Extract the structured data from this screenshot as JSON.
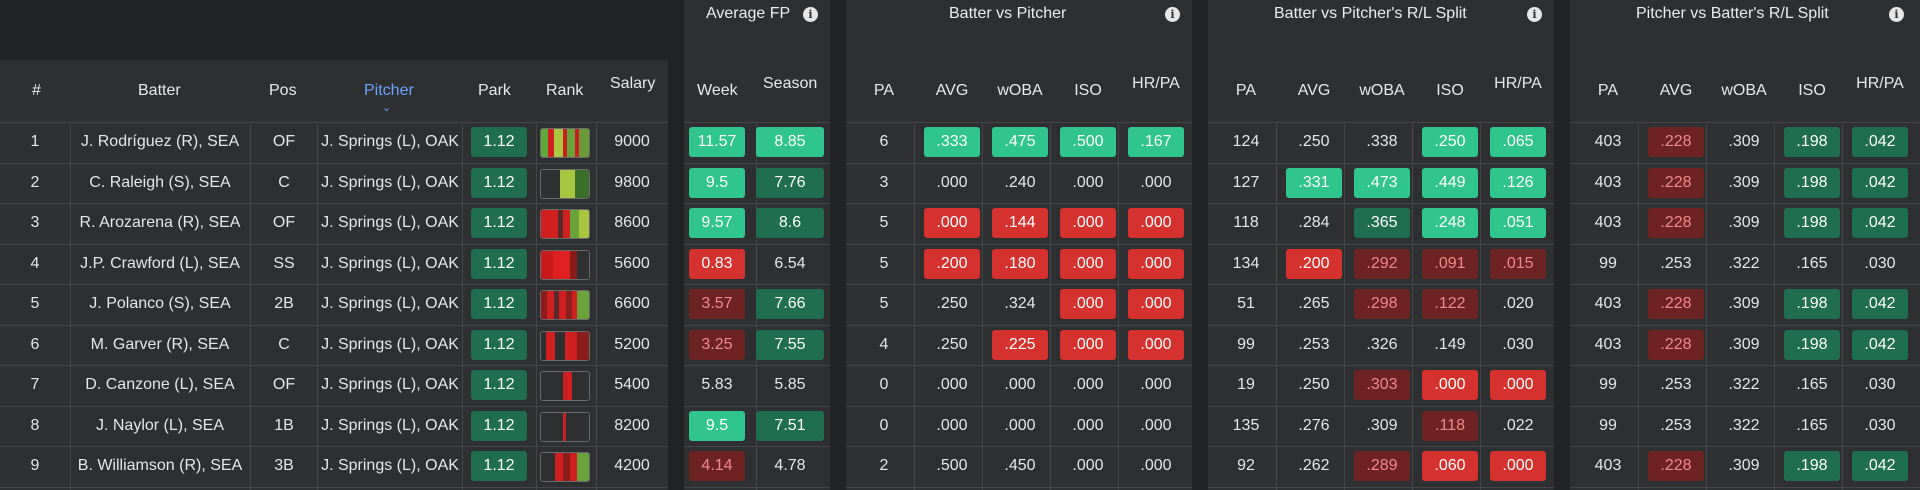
{
  "colors": {
    "bright_green": "#2fc58c",
    "dark_green": "#1f6e4f",
    "bright_red": "#d5312f",
    "dark_red": "#6e2323",
    "accent_blue": "#6aa4ff"
  },
  "groups": [
    {
      "title": "Average FP",
      "info_icon": "info-icon"
    },
    {
      "title": "Batter vs Pitcher",
      "info_icon": "info-icon"
    },
    {
      "title": "Batter vs Pitcher's R/L Split",
      "info_icon": "info-icon"
    },
    {
      "title": "Pitcher vs Batter's R/L Split",
      "info_icon": "info-icon"
    }
  ],
  "columns": {
    "num": "#",
    "batter": "Batter",
    "pos": "Pos",
    "pitcher": "Pitcher",
    "park": "Park",
    "rank": "Rank",
    "salary": "Salary",
    "week": "Week",
    "season": "Season",
    "stats": [
      "PA",
      "AVG",
      "wOBA",
      "ISO",
      "HR/PA"
    ]
  },
  "sort": {
    "column": "pitcher",
    "direction": "descending"
  },
  "rows": [
    {
      "num": "1",
      "batter": "J. Rodríguez (R), SEA",
      "pos": "OF",
      "pitcher": "J. Springs (L), OAK",
      "park": "1.12",
      "salary": "9000",
      "rank": [
        [
          "#5fa83a",
          0.15
        ],
        [
          "#d01f1f",
          0.12
        ],
        [
          "#a8c640",
          0.18
        ],
        [
          "#c82020",
          0.1
        ],
        [
          "#6aa33a",
          0.15
        ],
        [
          "#c82020",
          0.1
        ],
        [
          "#6a9a38",
          0.2
        ]
      ],
      "afp": [
        [
          "11.57",
          "bg"
        ],
        [
          "8.85",
          "bg"
        ]
      ],
      "bvp": [
        [
          "6",
          ""
        ],
        [
          ".333",
          "bg"
        ],
        [
          ".475",
          "bg"
        ],
        [
          ".500",
          "bg"
        ],
        [
          ".167",
          "bg"
        ]
      ],
      "bvs": [
        [
          "124",
          ""
        ],
        [
          ".250",
          ""
        ],
        [
          ".338",
          ""
        ],
        [
          ".250",
          "bg"
        ],
        [
          ".065",
          "bg"
        ]
      ],
      "pvs": [
        [
          "403",
          ""
        ],
        [
          ".228",
          "dr"
        ],
        [
          ".309",
          ""
        ],
        [
          ".198",
          "dg"
        ],
        [
          ".042",
          "dg"
        ]
      ]
    },
    {
      "num": "2",
      "batter": "C. Raleigh (S), SEA",
      "pos": "C",
      "pitcher": "J. Springs (L), OAK",
      "park": "1.12",
      "salary": "9800",
      "rank": [
        [
          "#2e2f31",
          0.4
        ],
        [
          "#a7c63f",
          0.3
        ],
        [
          "#3a6e2a",
          0.3
        ]
      ],
      "afp": [
        [
          "9.5",
          "bg"
        ],
        [
          "7.76",
          "dg"
        ]
      ],
      "bvp": [
        [
          "3",
          ""
        ],
        [
          ".000",
          ""
        ],
        [
          ".240",
          ""
        ],
        [
          ".000",
          ""
        ],
        [
          ".000",
          ""
        ]
      ],
      "bvs": [
        [
          "127",
          ""
        ],
        [
          ".331",
          "bg"
        ],
        [
          ".473",
          "bg"
        ],
        [
          ".449",
          "bg"
        ],
        [
          ".126",
          "bg"
        ]
      ],
      "pvs": [
        [
          "403",
          ""
        ],
        [
          ".228",
          "dr"
        ],
        [
          ".309",
          ""
        ],
        [
          ".198",
          "dg"
        ],
        [
          ".042",
          "dg"
        ]
      ]
    },
    {
      "num": "3",
      "batter": "R. Arozarena (R), SEA",
      "pos": "OF",
      "pitcher": "J. Springs (L), OAK",
      "park": "1.12",
      "salary": "8600",
      "rank": [
        [
          "#d01f1f",
          0.35
        ],
        [
          "#5a2a2a",
          0.1
        ],
        [
          "#d01f1f",
          0.15
        ],
        [
          "#6aa33a",
          0.2
        ],
        [
          "#a8c640",
          0.2
        ]
      ],
      "afp": [
        [
          "9.57",
          "bg"
        ],
        [
          "8.6",
          "dg"
        ]
      ],
      "bvp": [
        [
          "5",
          ""
        ],
        [
          ".000",
          "br"
        ],
        [
          ".144",
          "br"
        ],
        [
          ".000",
          "br"
        ],
        [
          ".000",
          "br"
        ]
      ],
      "bvs": [
        [
          "118",
          ""
        ],
        [
          ".284",
          ""
        ],
        [
          ".365",
          "dg"
        ],
        [
          ".248",
          "bg"
        ],
        [
          ".051",
          "bg"
        ]
      ],
      "pvs": [
        [
          "403",
          ""
        ],
        [
          ".228",
          "dr"
        ],
        [
          ".309",
          ""
        ],
        [
          ".198",
          "dg"
        ],
        [
          ".042",
          "dg"
        ]
      ]
    },
    {
      "num": "4",
      "batter": "J.P. Crawford (L), SEA",
      "pos": "SS",
      "pitcher": "J. Springs (L), OAK",
      "park": "1.12",
      "salary": "5600",
      "rank": [
        [
          "#c81a1a",
          0.25
        ],
        [
          "#e02020",
          0.35
        ],
        [
          "#8a1c1c",
          0.15
        ],
        [
          "#2e2f31",
          0.25
        ]
      ],
      "afp": [
        [
          "0.83",
          "br"
        ],
        [
          "6.54",
          ""
        ]
      ],
      "bvp": [
        [
          "5",
          ""
        ],
        [
          ".200",
          "br"
        ],
        [
          ".180",
          "br"
        ],
        [
          ".000",
          "br"
        ],
        [
          ".000",
          "br"
        ]
      ],
      "bvs": [
        [
          "134",
          ""
        ],
        [
          ".200",
          "br"
        ],
        [
          ".292",
          "dr"
        ],
        [
          ".091",
          "dr"
        ],
        [
          ".015",
          "dr"
        ]
      ],
      "pvs": [
        [
          "99",
          ""
        ],
        [
          ".253",
          ""
        ],
        [
          ".322",
          ""
        ],
        [
          ".165",
          ""
        ],
        [
          ".030",
          ""
        ]
      ]
    },
    {
      "num": "5",
      "batter": "J. Polanco (S), SEA",
      "pos": "2B",
      "pitcher": "J. Springs (L), OAK",
      "park": "1.12",
      "salary": "6600",
      "rank": [
        [
          "#8a1c1c",
          0.12
        ],
        [
          "#d01f1f",
          0.15
        ],
        [
          "#5a2a2a",
          0.1
        ],
        [
          "#d01f1f",
          0.15
        ],
        [
          "#8a2020",
          0.12
        ],
        [
          "#d01f1f",
          0.12
        ],
        [
          "#6aa33a",
          0.24
        ]
      ],
      "afp": [
        [
          "3.57",
          "dr"
        ],
        [
          "7.66",
          "dg"
        ]
      ],
      "bvp": [
        [
          "5",
          ""
        ],
        [
          ".250",
          ""
        ],
        [
          ".324",
          ""
        ],
        [
          ".000",
          "br"
        ],
        [
          ".000",
          "br"
        ]
      ],
      "bvs": [
        [
          "51",
          ""
        ],
        [
          ".265",
          ""
        ],
        [
          ".298",
          "dr"
        ],
        [
          ".122",
          "dr"
        ],
        [
          ".020",
          ""
        ]
      ],
      "pvs": [
        [
          "403",
          ""
        ],
        [
          ".228",
          "dr"
        ],
        [
          ".309",
          ""
        ],
        [
          ".198",
          "dg"
        ],
        [
          ".042",
          "dg"
        ]
      ]
    },
    {
      "num": "6",
      "batter": "M. Garver (R), SEA",
      "pos": "C",
      "pitcher": "J. Springs (L), OAK",
      "park": "1.12",
      "salary": "5200",
      "rank": [
        [
          "#2e2f31",
          0.1
        ],
        [
          "#d01f1f",
          0.2
        ],
        [
          "#2e2f31",
          0.2
        ],
        [
          "#d01f1f",
          0.25
        ],
        [
          "#8a1c1c",
          0.25
        ]
      ],
      "afp": [
        [
          "3.25",
          "dr"
        ],
        [
          "7.55",
          "dg"
        ]
      ],
      "bvp": [
        [
          "4",
          ""
        ],
        [
          ".250",
          ""
        ],
        [
          ".225",
          "br"
        ],
        [
          ".000",
          "br"
        ],
        [
          ".000",
          "br"
        ]
      ],
      "bvs": [
        [
          "99",
          ""
        ],
        [
          ".253",
          ""
        ],
        [
          ".326",
          ""
        ],
        [
          ".149",
          ""
        ],
        [
          ".030",
          ""
        ]
      ],
      "pvs": [
        [
          "403",
          ""
        ],
        [
          ".228",
          "dr"
        ],
        [
          ".309",
          ""
        ],
        [
          ".198",
          "dg"
        ],
        [
          ".042",
          "dg"
        ]
      ]
    },
    {
      "num": "7",
      "batter": "D. Canzone (L), SEA",
      "pos": "OF",
      "pitcher": "J. Springs (L), OAK",
      "park": "1.12",
      "salary": "5400",
      "rank": [
        [
          "#2e2f31",
          0.45
        ],
        [
          "#c82020",
          0.1
        ],
        [
          "#d01f1f",
          0.1
        ],
        [
          "#2e2f31",
          0.35
        ]
      ],
      "afp": [
        [
          "5.83",
          ""
        ],
        [
          "5.85",
          ""
        ]
      ],
      "bvp": [
        [
          "0",
          ""
        ],
        [
          ".000",
          ""
        ],
        [
          ".000",
          ""
        ],
        [
          ".000",
          ""
        ],
        [
          ".000",
          ""
        ]
      ],
      "bvs": [
        [
          "19",
          ""
        ],
        [
          ".250",
          ""
        ],
        [
          ".303",
          "dr"
        ],
        [
          ".000",
          "br"
        ],
        [
          ".000",
          "br"
        ]
      ],
      "pvs": [
        [
          "99",
          ""
        ],
        [
          ".253",
          ""
        ],
        [
          ".322",
          ""
        ],
        [
          ".165",
          ""
        ],
        [
          ".030",
          ""
        ]
      ]
    },
    {
      "num": "8",
      "batter": "J. Naylor (L), SEA",
      "pos": "1B",
      "pitcher": "J. Springs (L), OAK",
      "park": "1.12",
      "salary": "8200",
      "rank": [
        [
          "#2e2f31",
          0.45
        ],
        [
          "#d01f1f",
          0.08
        ],
        [
          "#2e2f31",
          0.47
        ]
      ],
      "afp": [
        [
          "9.5",
          "bg"
        ],
        [
          "7.51",
          "dg"
        ]
      ],
      "bvp": [
        [
          "0",
          ""
        ],
        [
          ".000",
          ""
        ],
        [
          ".000",
          ""
        ],
        [
          ".000",
          ""
        ],
        [
          ".000",
          ""
        ]
      ],
      "bvs": [
        [
          "135",
          ""
        ],
        [
          ".276",
          ""
        ],
        [
          ".309",
          ""
        ],
        [
          ".118",
          "dr"
        ],
        [
          ".022",
          ""
        ]
      ],
      "pvs": [
        [
          "99",
          ""
        ],
        [
          ".253",
          ""
        ],
        [
          ".322",
          ""
        ],
        [
          ".165",
          ""
        ],
        [
          ".030",
          ""
        ]
      ]
    },
    {
      "num": "9",
      "batter": "B. Williamson (R), SEA",
      "pos": "3B",
      "pitcher": "J. Springs (L), OAK",
      "park": "1.12",
      "salary": "4200",
      "rank": [
        [
          "#2e2f31",
          0.3
        ],
        [
          "#d01f1f",
          0.15
        ],
        [
          "#8a1c1c",
          0.15
        ],
        [
          "#d01f1f",
          0.15
        ],
        [
          "#6aa33a",
          0.25
        ]
      ],
      "afp": [
        [
          "4.14",
          "dr"
        ],
        [
          "4.78",
          ""
        ]
      ],
      "bvp": [
        [
          "2",
          ""
        ],
        [
          ".500",
          ""
        ],
        [
          ".450",
          ""
        ],
        [
          ".000",
          ""
        ],
        [
          ".000",
          ""
        ]
      ],
      "bvs": [
        [
          "92",
          ""
        ],
        [
          ".262",
          ""
        ],
        [
          ".289",
          "dr"
        ],
        [
          ".060",
          "br"
        ],
        [
          ".000",
          "br"
        ]
      ],
      "pvs": [
        [
          "403",
          ""
        ],
        [
          ".228",
          "dr"
        ],
        [
          ".309",
          ""
        ],
        [
          ".198",
          "dg"
        ],
        [
          ".042",
          "dg"
        ]
      ]
    }
  ]
}
